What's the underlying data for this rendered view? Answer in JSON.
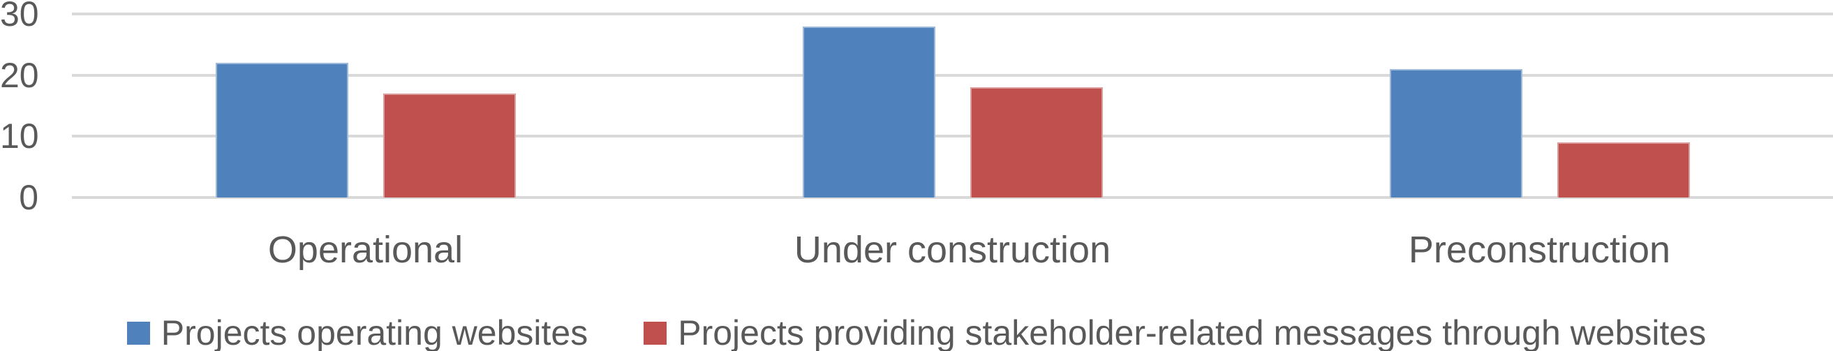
{
  "chart_data": {
    "type": "bar",
    "categories": [
      "Operational",
      "Under construction",
      "Preconstruction"
    ],
    "series": [
      {
        "name": "Projects operating websites",
        "color": "#4F81BD",
        "values": [
          22,
          28,
          21
        ]
      },
      {
        "name": "Projects providing stakeholder-related messages through websites",
        "color": "#C0504D",
        "values": [
          17,
          18,
          9
        ]
      }
    ],
    "yticks": [
      0,
      10,
      20,
      30
    ],
    "ylim": [
      0,
      30
    ],
    "grid": true,
    "legend_position": "bottom"
  },
  "colors": {
    "background": "#FFFFFF",
    "grid": "#D9D9D9",
    "text": "#595959",
    "series_blue": "#4F81BD",
    "series_red": "#C0504D"
  }
}
